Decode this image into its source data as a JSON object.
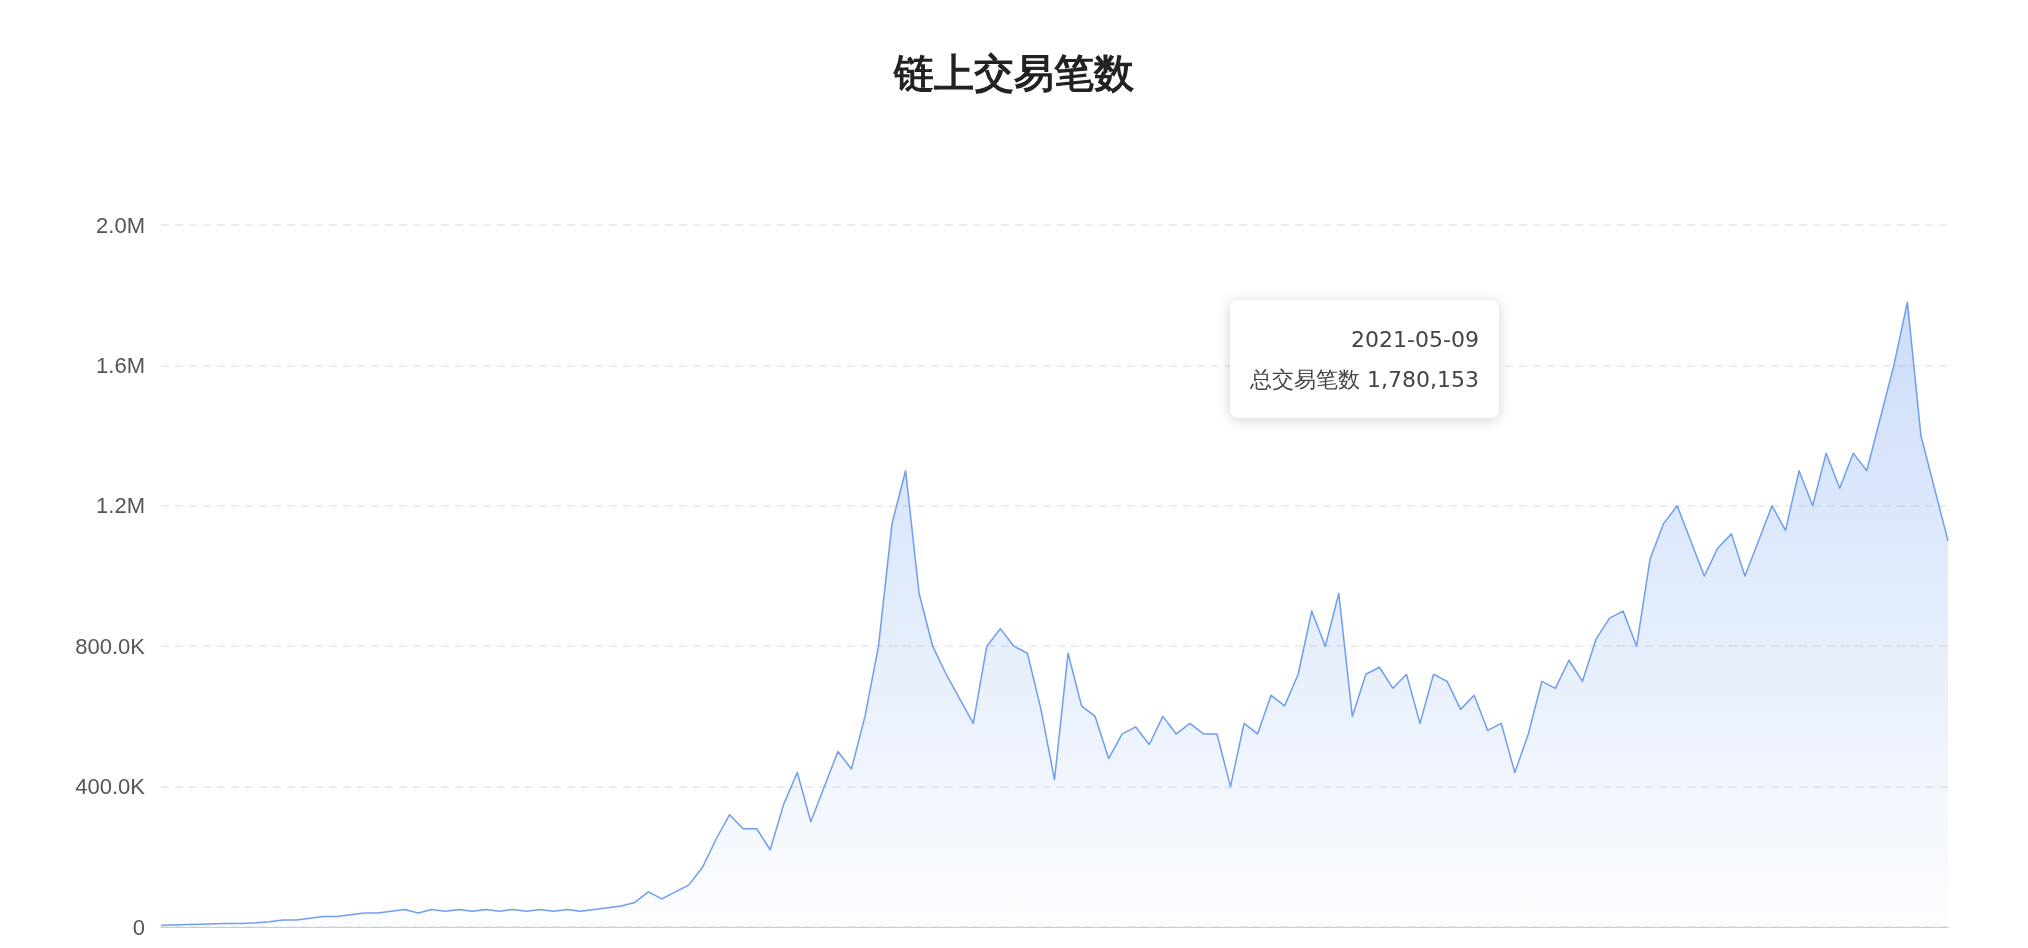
{
  "chart_data": {
    "type": "area",
    "title": "链上交易笔数",
    "categories": [
      null,
      null,
      null,
      null,
      null,
      null,
      null,
      null,
      null,
      null,
      null,
      null,
      null,
      null,
      null,
      null,
      null,
      null,
      null,
      null,
      null,
      null,
      null,
      null,
      null,
      null,
      null,
      null,
      null,
      null,
      null,
      null,
      null,
      null,
      null,
      null,
      null,
      null,
      null,
      null,
      null,
      null,
      null,
      null,
      null,
      null,
      null,
      null,
      null,
      null,
      null,
      null,
      null,
      null,
      null,
      null,
      null,
      null,
      null,
      null,
      null,
      null,
      null,
      null,
      null,
      null,
      null,
      null,
      null,
      null,
      null,
      null,
      null,
      null,
      null,
      null,
      null,
      null,
      null,
      null,
      null,
      null,
      null,
      null,
      null,
      null,
      null,
      null,
      null,
      null,
      null,
      null,
      null,
      null,
      null,
      null,
      null,
      null,
      null,
      null,
      null,
      null,
      null,
      null,
      null,
      null,
      null,
      null,
      null,
      null,
      null,
      null,
      null,
      null,
      null,
      null,
      null,
      null,
      null,
      null,
      null,
      null,
      null,
      null,
      null,
      null,
      null,
      null,
      null,
      null,
      null,
      null,
      null
    ],
    "series": [
      {
        "color": "#6e9ef0",
        "values": [
          5000,
          6000,
          7000,
          8000,
          9000,
          10000,
          10000,
          12000,
          15000,
          20000,
          20000,
          25000,
          30000,
          30000,
          35000,
          40000,
          40000,
          45000,
          50000,
          40000,
          50000,
          45000,
          50000,
          45000,
          50000,
          45000,
          50000,
          45000,
          50000,
          45000,
          50000,
          45000,
          50000,
          55000,
          60000,
          70000,
          100000,
          80000,
          100000,
          120000,
          170000,
          250000,
          320000,
          280000,
          280000,
          220000,
          350000,
          440000,
          300000,
          400000,
          500000,
          450000,
          600000,
          800000,
          1150000,
          1300000,
          950000,
          800000,
          720000,
          650000,
          580000,
          800000,
          850000,
          800000,
          780000,
          620000,
          420000,
          780000,
          630000,
          600000,
          480000,
          550000,
          570000,
          520000,
          600000,
          550000,
          580000,
          550000,
          550000,
          400000,
          580000,
          550000,
          660000,
          630000,
          720000,
          900000,
          800000,
          950000,
          600000,
          720000,
          740000,
          680000,
          720000,
          580000,
          720000,
          700000,
          620000,
          660000,
          560000,
          580000,
          440000,
          550000,
          700000,
          680000,
          760000,
          700000,
          820000,
          880000,
          900000,
          800000,
          1050000,
          1150000,
          1200000,
          1100000,
          1000000,
          1080000,
          1120000,
          1000000,
          1100000,
          1200000,
          1130000,
          1300000,
          1200000,
          1350000,
          1250000,
          1350000,
          1300000,
          1450000,
          1600000,
          1780153,
          1400000,
          1250000,
          1100000
        ]
      }
    ],
    "ylim": [
      0,
      2000000
    ],
    "yticks": [
      {
        "value": 0,
        "label": "0"
      },
      {
        "value": 400000,
        "label": "400.0K"
      },
      {
        "value": 800000,
        "label": "800.0K"
      },
      {
        "value": 1200000,
        "label": "1.2M"
      },
      {
        "value": 1600000,
        "label": "1.6M"
      },
      {
        "value": 2000000,
        "label": "2.0M"
      }
    ],
    "grid": "y",
    "marker": "none",
    "tick_labels": "y",
    "annotations": [
      "2021-05-09",
      "总交易笔数 1,780,153"
    ]
  }
}
